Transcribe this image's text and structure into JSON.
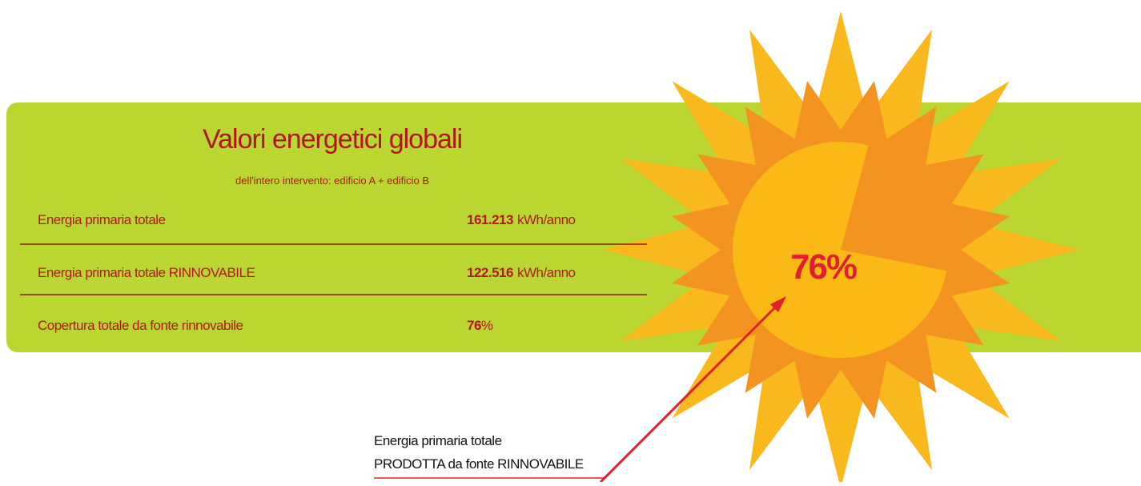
{
  "panel": {
    "title": "Valori energetici globali",
    "subtitle": "dell'intero intervento: edificio A + edificio B",
    "rows": [
      {
        "label": "Energia primaria totale",
        "value": "161.213",
        "unit": "kWh/anno"
      },
      {
        "label": "Energia primaria totale RINNOVABILE",
        "value": "122.516",
        "unit": "kWh/anno"
      },
      {
        "label": "Copertura totale da fonte rinnovabile",
        "value": "76",
        "unit": "%"
      }
    ]
  },
  "sun": {
    "value": 76,
    "label": "76%"
  },
  "callout": {
    "lines": [
      "Energia primaria totale",
      "PRODOTTA da fonte RINNOVABILE"
    ]
  }
}
